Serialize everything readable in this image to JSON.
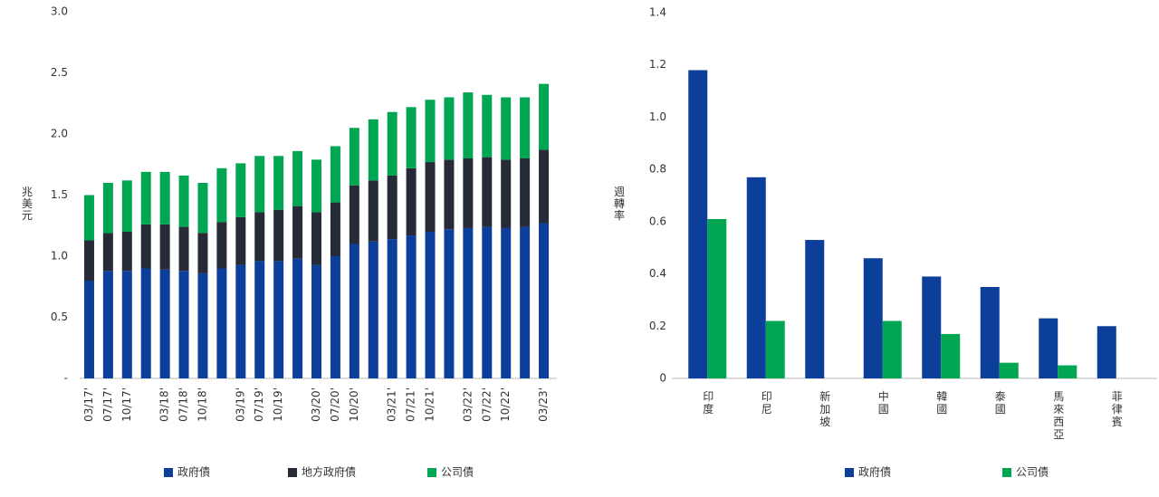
{
  "chart_data": [
    {
      "type": "bar",
      "stacked": true,
      "ylabel": "兆美元",
      "categories": [
        "03/17'",
        "07/17'",
        "10/17'",
        null,
        "03/18'",
        "07/18'",
        "10/18'",
        null,
        "03/19'",
        "07/19'",
        "10/19'",
        null,
        "03/20'",
        "07/20'",
        "10/20'",
        null,
        "03/21'",
        "07/21'",
        "10/21'",
        null,
        "03/22'",
        "07/22'",
        "10/22'",
        null,
        "03/23'"
      ],
      "series": [
        {
          "name": "政府債",
          "color": "#0b3f9a",
          "values": [
            0.8,
            0.88,
            0.88,
            0.9,
            0.89,
            0.88,
            0.86,
            0.9,
            0.93,
            0.96,
            0.96,
            0.98,
            0.93,
            1.0,
            1.1,
            1.12,
            1.14,
            1.17,
            1.2,
            1.22,
            1.23,
            1.24,
            1.23,
            1.24,
            1.27
          ]
        },
        {
          "name": "地方政府債",
          "color": "#272b37",
          "values": [
            0.33,
            0.31,
            0.32,
            0.36,
            0.37,
            0.36,
            0.33,
            0.38,
            0.39,
            0.4,
            0.42,
            0.43,
            0.43,
            0.44,
            0.48,
            0.5,
            0.52,
            0.55,
            0.57,
            0.57,
            0.57,
            0.57,
            0.56,
            0.56,
            0.6
          ]
        },
        {
          "name": "公司債",
          "color": "#00a651",
          "values": [
            0.37,
            0.41,
            0.42,
            0.43,
            0.43,
            0.42,
            0.41,
            0.44,
            0.44,
            0.46,
            0.44,
            0.45,
            0.43,
            0.46,
            0.47,
            0.5,
            0.52,
            0.5,
            0.51,
            0.51,
            0.54,
            0.51,
            0.51,
            0.5,
            0.54
          ]
        }
      ],
      "ylim": [
        0,
        3
      ],
      "yticks": [
        {
          "value": 0,
          "label": "-"
        },
        0.5,
        {
          "value": 1,
          "label": "1.0"
        },
        1.5,
        {
          "value": 2,
          "label": "2.0"
        },
        2.5,
        {
          "value": 3,
          "label": "3.0"
        }
      ]
    },
    {
      "type": "bar",
      "stacked": false,
      "ylabel": "週轉率",
      "categories": [
        "印度",
        "印尼",
        "新加坡",
        "中國",
        "韓國",
        "泰國",
        "馬來西亞",
        "菲律賓"
      ],
      "series": [
        {
          "name": "政府債",
          "color": "#0b3f9a",
          "values": [
            1.18,
            0.77,
            0.53,
            0.46,
            0.39,
            0.35,
            0.23,
            0.2
          ]
        },
        {
          "name": "公司債",
          "color": "#00a651",
          "values": [
            0.61,
            0.22,
            null,
            0.22,
            0.17,
            0.06,
            0.05,
            null
          ]
        }
      ],
      "ylim": [
        0,
        1.4
      ],
      "yticks": [
        0,
        0.2,
        0.4,
        0.6,
        0.8,
        {
          "value": 1,
          "label": "1.0"
        },
        1.2,
        1.4
      ]
    }
  ]
}
